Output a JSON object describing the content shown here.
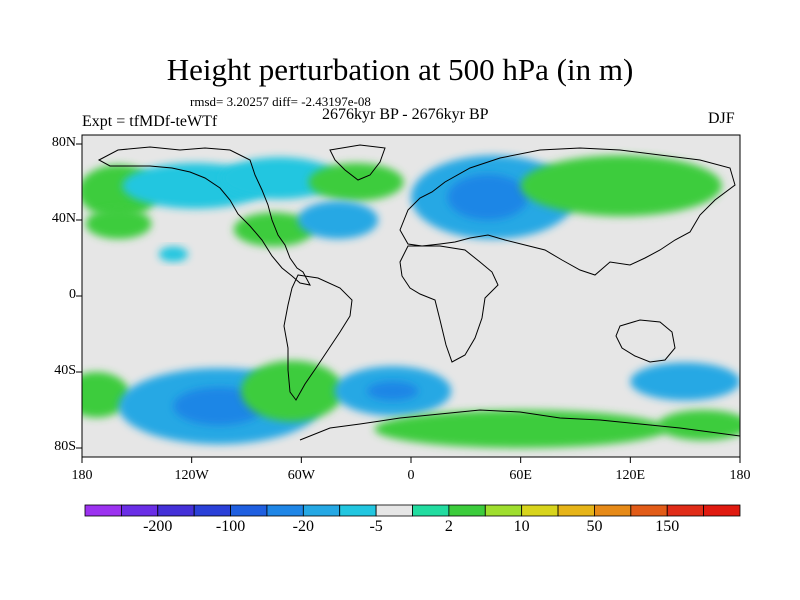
{
  "title": "Height perturbation at 500 hPa (in m)",
  "stats_line": "rmsd= 3.20257  diff= -2.43197e-08",
  "period_line": "2676kyr BP - 2676kyr BP",
  "experiment": "Expt = tfMDf-teWTf",
  "season": "DJF",
  "lat_ticks": [
    {
      "lat": 80,
      "label": "80N"
    },
    {
      "lat": 40,
      "label": "40N"
    },
    {
      "lat": 0,
      "label": "0"
    },
    {
      "lat": -40,
      "label": "40S"
    },
    {
      "lat": -80,
      "label": "80S"
    }
  ],
  "lon_ticks": [
    {
      "lon": -180,
      "label": "180"
    },
    {
      "lon": -120,
      "label": "120W"
    },
    {
      "lon": -60,
      "label": "60W"
    },
    {
      "lon": 0,
      "label": "0"
    },
    {
      "lon": 60,
      "label": "60E"
    },
    {
      "lon": 120,
      "label": "120E"
    },
    {
      "lon": 180,
      "label": "180"
    }
  ],
  "colorbar": {
    "colors": [
      "#9c32f0",
      "#6a2ee6",
      "#4430d8",
      "#2a40d8",
      "#1f5fe0",
      "#1f86e6",
      "#25a8e4",
      "#22c6e0",
      "#e6e6e6",
      "#22dca0",
      "#3ccc3c",
      "#9fde2e",
      "#d8d41c",
      "#e6b418",
      "#e68a18",
      "#e25c18",
      "#e02c18",
      "#e01a10"
    ],
    "labels": [
      {
        "after_bin": 1,
        "text": "-200"
      },
      {
        "after_bin": 3,
        "text": "-100"
      },
      {
        "after_bin": 5,
        "text": "-20"
      },
      {
        "after_bin": 7,
        "text": "-5"
      },
      {
        "after_bin": 9,
        "text": "2"
      },
      {
        "after_bin": 11,
        "text": "10"
      },
      {
        "after_bin": 13,
        "text": "50"
      },
      {
        "after_bin": 15,
        "text": "150"
      }
    ]
  },
  "field": {
    "background_color": "#e6e6e6",
    "anomalies": [
      {
        "lon": -160,
        "lat": 55,
        "rlon": 22,
        "rlat": 14,
        "level": 2
      },
      {
        "lon": -118,
        "lat": 58,
        "rlon": 40,
        "rlat": 12,
        "level": 1
      },
      {
        "lon": -72,
        "lat": 62,
        "rlon": 32,
        "rlat": 11,
        "level": 1
      },
      {
        "lon": -160,
        "lat": 38,
        "rlon": 18,
        "rlat": 8,
        "level": 2
      },
      {
        "lon": -75,
        "lat": 35,
        "rlon": 22,
        "rlat": 9,
        "level": 2
      },
      {
        "lon": -30,
        "lat": 60,
        "rlon": 26,
        "rlat": 10,
        "level": 2
      },
      {
        "lon": -40,
        "lat": 40,
        "rlon": 22,
        "rlat": 10,
        "level": 1
      },
      {
        "lon": 45,
        "lat": 52,
        "rlon": 45,
        "rlat": 22,
        "level": 1
      },
      {
        "lon": 42,
        "lat": 52,
        "rlon": 22,
        "rlat": 12,
        "level": 2
      },
      {
        "lon": 115,
        "lat": 58,
        "rlon": 55,
        "rlat": 16,
        "level": 2
      },
      {
        "lon": -130,
        "lat": 22,
        "rlon": 8,
        "rlat": 4,
        "level": 1
      },
      {
        "lon": -172,
        "lat": -52,
        "rlon": 18,
        "rlat": 12,
        "level": 2
      },
      {
        "lon": -105,
        "lat": -58,
        "rlon": 55,
        "rlat": 20,
        "level": 1
      },
      {
        "lon": -105,
        "lat": -58,
        "rlon": 25,
        "rlat": 10,
        "level": 2
      },
      {
        "lon": -65,
        "lat": -50,
        "rlon": 28,
        "rlat": 16,
        "level": 2
      },
      {
        "lon": -10,
        "lat": -50,
        "rlon": 32,
        "rlat": 13,
        "level": 1
      },
      {
        "lon": -10,
        "lat": -50,
        "rlon": 14,
        "rlat": 5,
        "level": 2
      },
      {
        "lon": 60,
        "lat": -70,
        "rlon": 80,
        "rlat": 10,
        "level": 2
      },
      {
        "lon": 150,
        "lat": -45,
        "rlon": 30,
        "rlat": 10,
        "level": 1
      },
      {
        "lon": 160,
        "lat": -68,
        "rlon": 25,
        "rlat": 8,
        "level": 2
      }
    ]
  }
}
